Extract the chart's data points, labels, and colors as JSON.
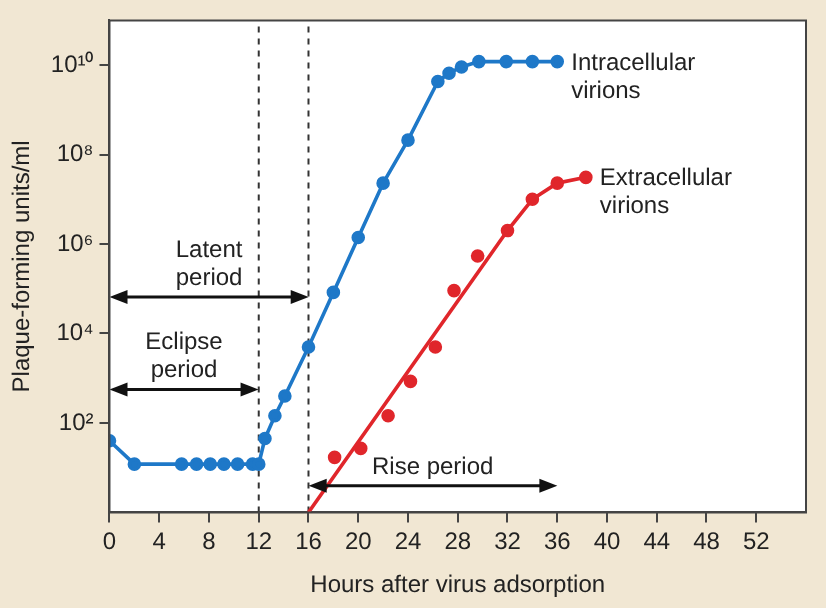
{
  "chart_data": {
    "type": "line",
    "xlabel": "Hours after virus adsorption",
    "ylabel": "Plaque-forming units/ml",
    "xlim": [
      0,
      56
    ],
    "xticks": [
      0,
      4,
      8,
      12,
      16,
      20,
      24,
      28,
      32,
      36,
      40,
      44,
      48,
      52
    ],
    "ylim": [
      1,
      100000000000.0
    ],
    "log": "y",
    "yticks": [
      {
        "value": 100,
        "label": "10²"
      },
      {
        "value": 10000,
        "label": "10⁴"
      },
      {
        "value": 1000000,
        "label": "10⁶"
      },
      {
        "value": 100000000,
        "label": "10⁸"
      },
      {
        "value": 10000000000,
        "label": "10¹⁰"
      }
    ],
    "grid": false,
    "legend": false,
    "series": [
      {
        "name": "Intracellular\nvirions",
        "marker": "circle",
        "color": "#1e78c8",
        "x": [
          0,
          2,
          5.8,
          7,
          8.1,
          9.2,
          10.3,
          11.5,
          12,
          12.5,
          13.3,
          14.1,
          16,
          18,
          20,
          22,
          24,
          26.4,
          27.3,
          28.3,
          29.7,
          31.9,
          34,
          36
        ],
        "values": [
          40,
          12,
          12,
          12,
          12,
          12,
          12,
          12,
          12,
          45,
          145,
          400,
          5000,
          83000,
          1400000,
          23000000,
          210000000,
          4300000000,
          6600000000,
          9100000000,
          12000000000,
          12000000000,
          12000000000,
          12000000000
        ]
      },
      {
        "type": "scatter",
        "marker": "circle",
        "color": "#e0262b",
        "x": [
          18.1,
          20.2,
          22.4,
          24.2,
          26.2,
          27.7,
          29.6,
          32,
          34,
          36,
          38.3
        ],
        "values": [
          17,
          27,
          145,
          850,
          5000,
          91000,
          540000,
          2000000,
          10000000,
          23000000,
          31000000
        ]
      },
      {
        "name": "Extracellular\nvirions",
        "marker": "none",
        "color": "#e0262b",
        "x": [
          16,
          32,
          34,
          36,
          38.3
        ],
        "values": [
          1,
          2000000,
          10000000,
          23000000,
          31000000
        ]
      }
    ],
    "ref_lines": [
      {
        "axis": "x",
        "value": 12,
        "line_style": "dashed"
      },
      {
        "axis": "x",
        "value": 16,
        "line_style": "dashed"
      }
    ],
    "annotations": [
      "Latent\nperiod",
      "Eclipse\nperiod",
      "Rise period"
    ]
  }
}
